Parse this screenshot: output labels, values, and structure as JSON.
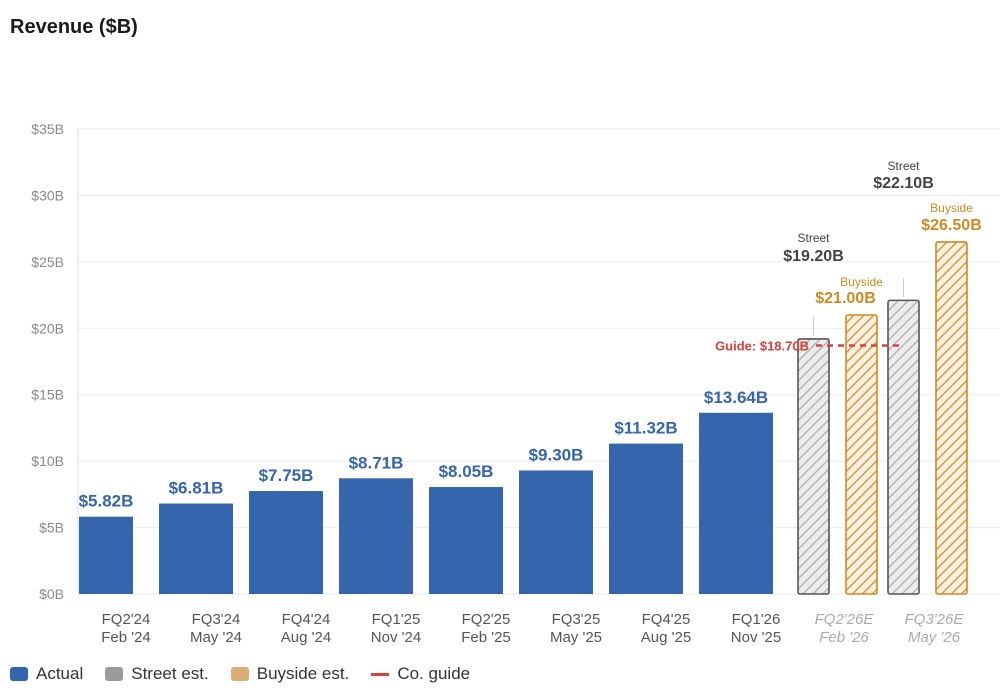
{
  "title": "Revenue ($B)",
  "chart_data": {
    "type": "bar",
    "title": "Revenue ($B)",
    "ylim": [
      0,
      35
    ],
    "yticks": [
      0,
      5,
      10,
      15,
      20,
      25,
      30,
      35
    ],
    "ytick_labels": [
      "$0B",
      "$5B",
      "$10B",
      "$15B",
      "$20B",
      "$25B",
      "$30B",
      "$35B"
    ],
    "grid": true,
    "actual": [
      {
        "quarter": "FQ2'24",
        "date": "Feb '24",
        "value": 5.82,
        "label": "$5.82B"
      },
      {
        "quarter": "FQ3'24",
        "date": "May '24",
        "value": 6.81,
        "label": "$6.81B"
      },
      {
        "quarter": "FQ4'24",
        "date": "Aug '24",
        "value": 7.75,
        "label": "$7.75B"
      },
      {
        "quarter": "FQ1'25",
        "date": "Nov '24",
        "value": 8.71,
        "label": "$8.71B"
      },
      {
        "quarter": "FQ2'25",
        "date": "Feb '25",
        "value": 8.05,
        "label": "$8.05B"
      },
      {
        "quarter": "FQ3'25",
        "date": "May '25",
        "value": 9.3,
        "label": "$9.30B"
      },
      {
        "quarter": "FQ4'25",
        "date": "Aug '25",
        "value": 11.32,
        "label": "$11.32B"
      },
      {
        "quarter": "FQ1'26",
        "date": "Nov '25",
        "value": 13.64,
        "label": "$13.64B"
      }
    ],
    "estimates": [
      {
        "quarter": "FQ2'26E",
        "date": "Feb '26",
        "street": 19.2,
        "street_caption": "Street",
        "street_label": "$19.20B",
        "buyside": 21.0,
        "buyside_caption": "Buyside",
        "buyside_label": "$21.00B"
      },
      {
        "quarter": "FQ3'26E",
        "date": "May '26",
        "street": 22.1,
        "street_caption": "Street",
        "street_label": "$22.10B",
        "buyside": 26.5,
        "buyside_caption": "Buyside",
        "buyside_label": "$26.50B"
      }
    ],
    "guide": {
      "value": 18.7,
      "label": "Guide: $18.70B"
    },
    "legend": [
      "Actual",
      "Street est.",
      "Buyside est.",
      "Co. guide"
    ]
  },
  "colors": {
    "actual": "#3565ad",
    "street": "#9b9b9b",
    "street_text": "#444444",
    "buyside": "#d08a22",
    "guide": "#d9413b",
    "grid": "#ebebeb",
    "axis_text": "#8a8a8a",
    "label_text": "#555555",
    "estimate_text": "#aaaaaa",
    "buyside_swatch": "#dcae72"
  }
}
